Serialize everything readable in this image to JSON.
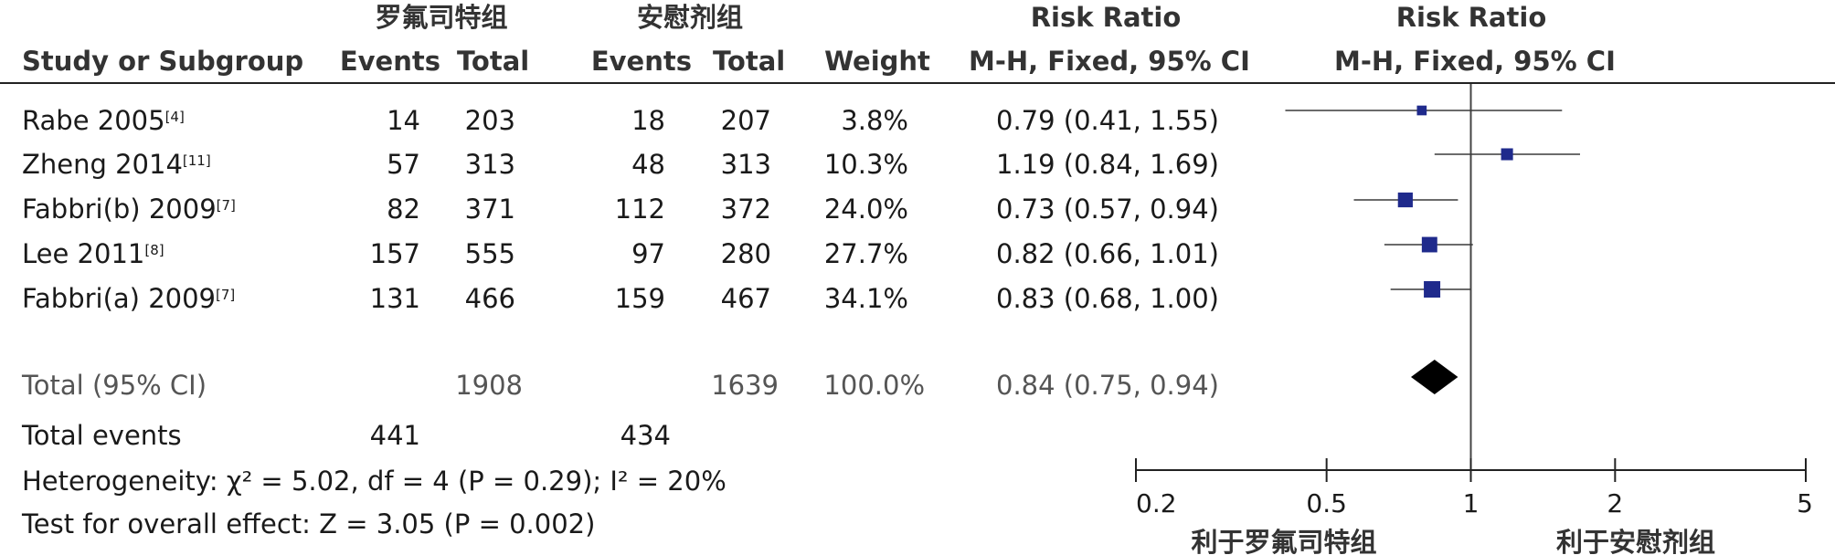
{
  "header": {
    "group1": "罗氟司特组",
    "group2": "安慰剂组",
    "rr_title": "Risk Ratio",
    "rr_method": "M-H, Fixed, 95% CI",
    "plot_title": "Risk Ratio",
    "plot_method": "M-H, Fixed, 95% CI",
    "study_col": "Study or Subgroup",
    "events": "Events",
    "total": "Total",
    "weight": "Weight"
  },
  "studies": [
    {
      "name": "Rabe 2005",
      "ref": "[4]",
      "e1": "14",
      "t1": "203",
      "e2": "18",
      "t2": "207",
      "weight": "3.8%",
      "ci_text": "0.79 (0.41, 1.55)"
    },
    {
      "name": "Zheng 2014",
      "ref": "[11]",
      "e1": "57",
      "t1": "313",
      "e2": "48",
      "t2": "313",
      "weight": "10.3%",
      "ci_text": "1.19 (0.84, 1.69)"
    },
    {
      "name": "Fabbri(b) 2009",
      "ref": "[7]",
      "e1": "82",
      "t1": "371",
      "e2": "112",
      "t2": "372",
      "weight": "24.0%",
      "ci_text": "0.73 (0.57, 0.94)"
    },
    {
      "name": "Lee 2011",
      "ref": "[8]",
      "e1": "157",
      "t1": "555",
      "e2": "97",
      "t2": "280",
      "weight": "27.7%",
      "ci_text": "0.82 (0.66, 1.01)"
    },
    {
      "name": "Fabbri(a) 2009",
      "ref": "[7]",
      "e1": "131",
      "t1": "466",
      "e2": "159",
      "t2": "467",
      "weight": "34.1%",
      "ci_text": "0.83 (0.68, 1.00)"
    }
  ],
  "total": {
    "label": "Total (95% CI)",
    "t1": "1908",
    "t2": "1639",
    "weight": "100.0%",
    "ci_text": "0.84 (0.75, 0.94)"
  },
  "total_events": {
    "label": "Total events",
    "e1": "441",
    "e2": "434"
  },
  "heterogeneity": "Heterogeneity: χ² = 5.02, df = 4 (P = 0.29); I² = 20%",
  "overall_effect": "Test for overall effect: Z = 3.05 (P = 0.002)",
  "axis_labels": {
    "favours_left": "利于罗氟司特组",
    "favours_right": "利于安慰剂组"
  },
  "chart_data": {
    "type": "forest",
    "scale": "log",
    "xlim": [
      0.2,
      5
    ],
    "ticks": [
      0.2,
      0.5,
      1,
      2,
      5
    ],
    "tick_labels": [
      "0.2",
      "0.5",
      "1",
      "2",
      "5"
    ],
    "null_value": 1,
    "marker_color": "#1f2a8c",
    "studies": [
      {
        "rr": 0.79,
        "lo": 0.41,
        "hi": 1.55,
        "weight": 3.8
      },
      {
        "rr": 1.19,
        "lo": 0.84,
        "hi": 1.69,
        "weight": 10.3
      },
      {
        "rr": 0.73,
        "lo": 0.57,
        "hi": 0.94,
        "weight": 24.0
      },
      {
        "rr": 0.82,
        "lo": 0.66,
        "hi": 1.01,
        "weight": 27.7
      },
      {
        "rr": 0.83,
        "lo": 0.68,
        "hi": 1.0,
        "weight": 34.1
      }
    ],
    "pooled": {
      "rr": 0.84,
      "lo": 0.75,
      "hi": 0.94
    }
  }
}
